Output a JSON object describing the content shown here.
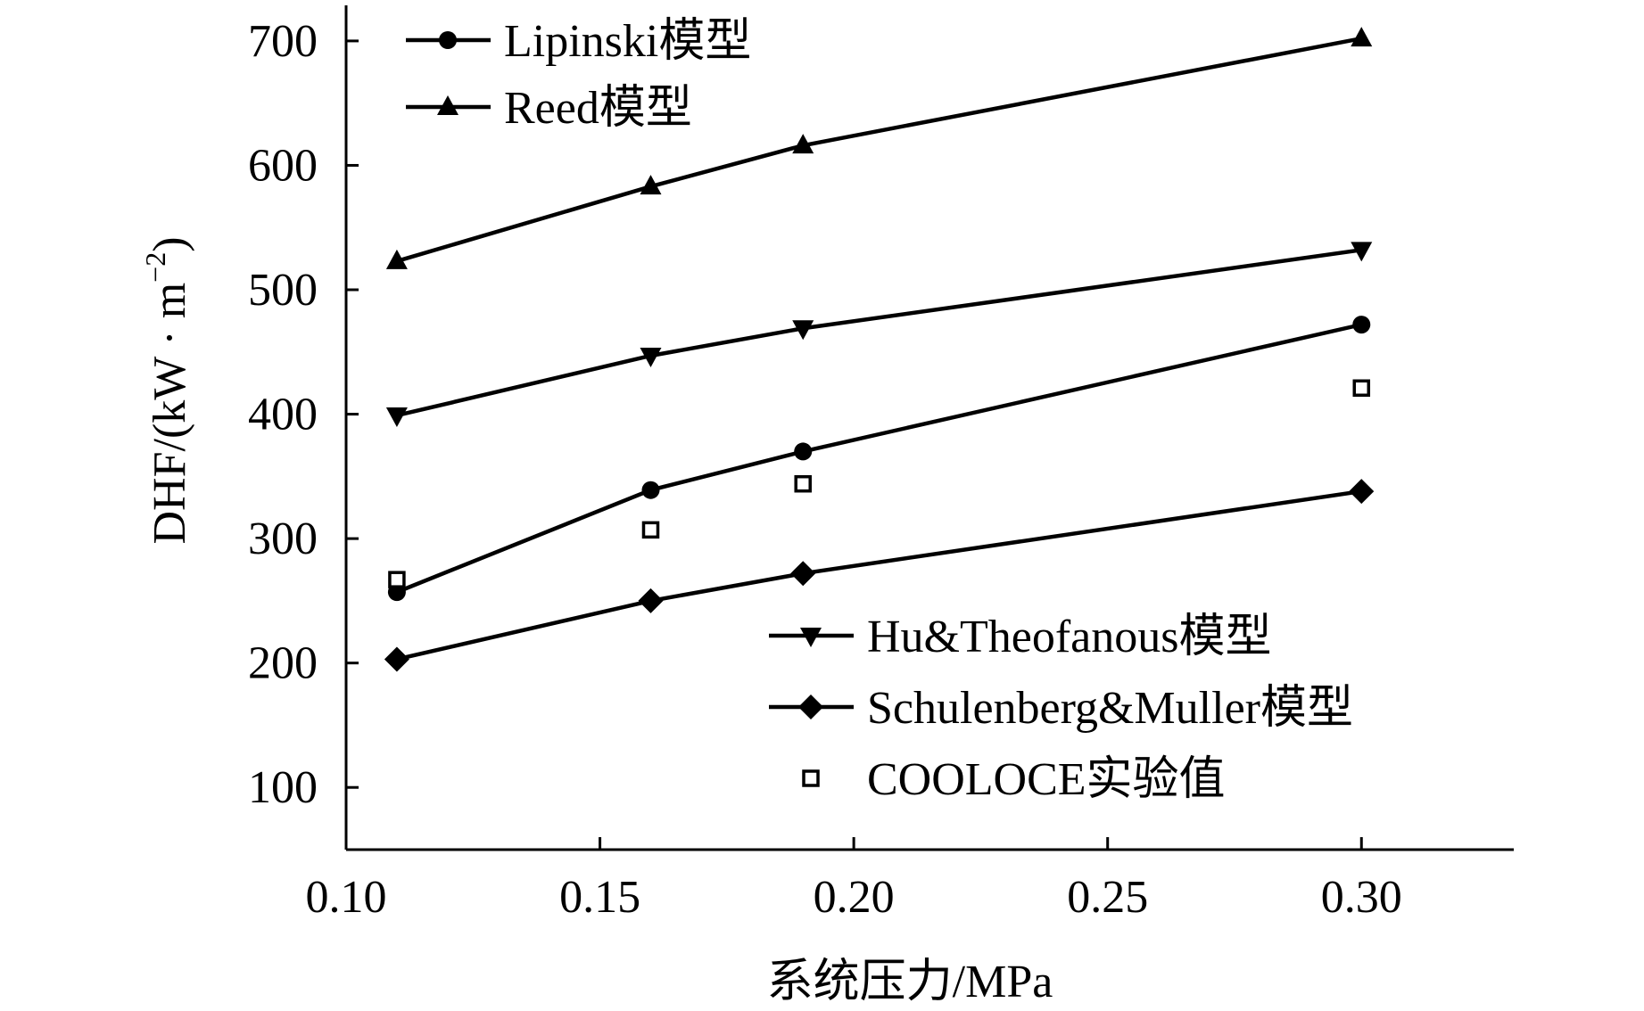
{
  "chart_data": {
    "type": "line",
    "xlabel": "系统压力/MPa",
    "ylabel": "DHF/(kW · m",
    "ylabel_sup": "−2",
    "ylabel_close": ")",
    "xlim": [
      0.1,
      0.33
    ],
    "ylim": [
      50,
      720
    ],
    "xticks": [
      "0.10",
      "0.15",
      "0.20",
      "0.25",
      "0.30"
    ],
    "yticks": [
      "100",
      "200",
      "300",
      "400",
      "500",
      "600",
      "700"
    ],
    "x": [
      0.11,
      0.16,
      0.19,
      0.3
    ],
    "series": [
      {
        "name": "Lipinski模型",
        "marker": "circle",
        "line": true,
        "values": [
          257,
          339,
          370,
          472
        ]
      },
      {
        "name": "Reed模型",
        "marker": "triangle-up",
        "line": true,
        "values": [
          523,
          583,
          616,
          702
        ]
      },
      {
        "name": "Hu&Theofanous模型",
        "marker": "triangle-down",
        "line": true,
        "values": [
          399,
          447,
          469,
          532
        ]
      },
      {
        "name": "Schulenberg&Muller模型",
        "marker": "diamond",
        "line": true,
        "values": [
          203,
          250,
          272,
          338
        ]
      },
      {
        "name": "COOLOCE实验值",
        "marker": "square-open",
        "line": false,
        "values": [
          267,
          307,
          344,
          421
        ]
      }
    ],
    "legend_top_left": [
      "Lipinski模型",
      "Reed模型"
    ],
    "legend_bottom_right": [
      "Hu&Theofanous模型",
      "Schulenberg&Muller模型",
      "COOLOCE实验值"
    ],
    "grid": false,
    "colors": {
      "line": "#000000",
      "background": "#ffffff"
    }
  }
}
